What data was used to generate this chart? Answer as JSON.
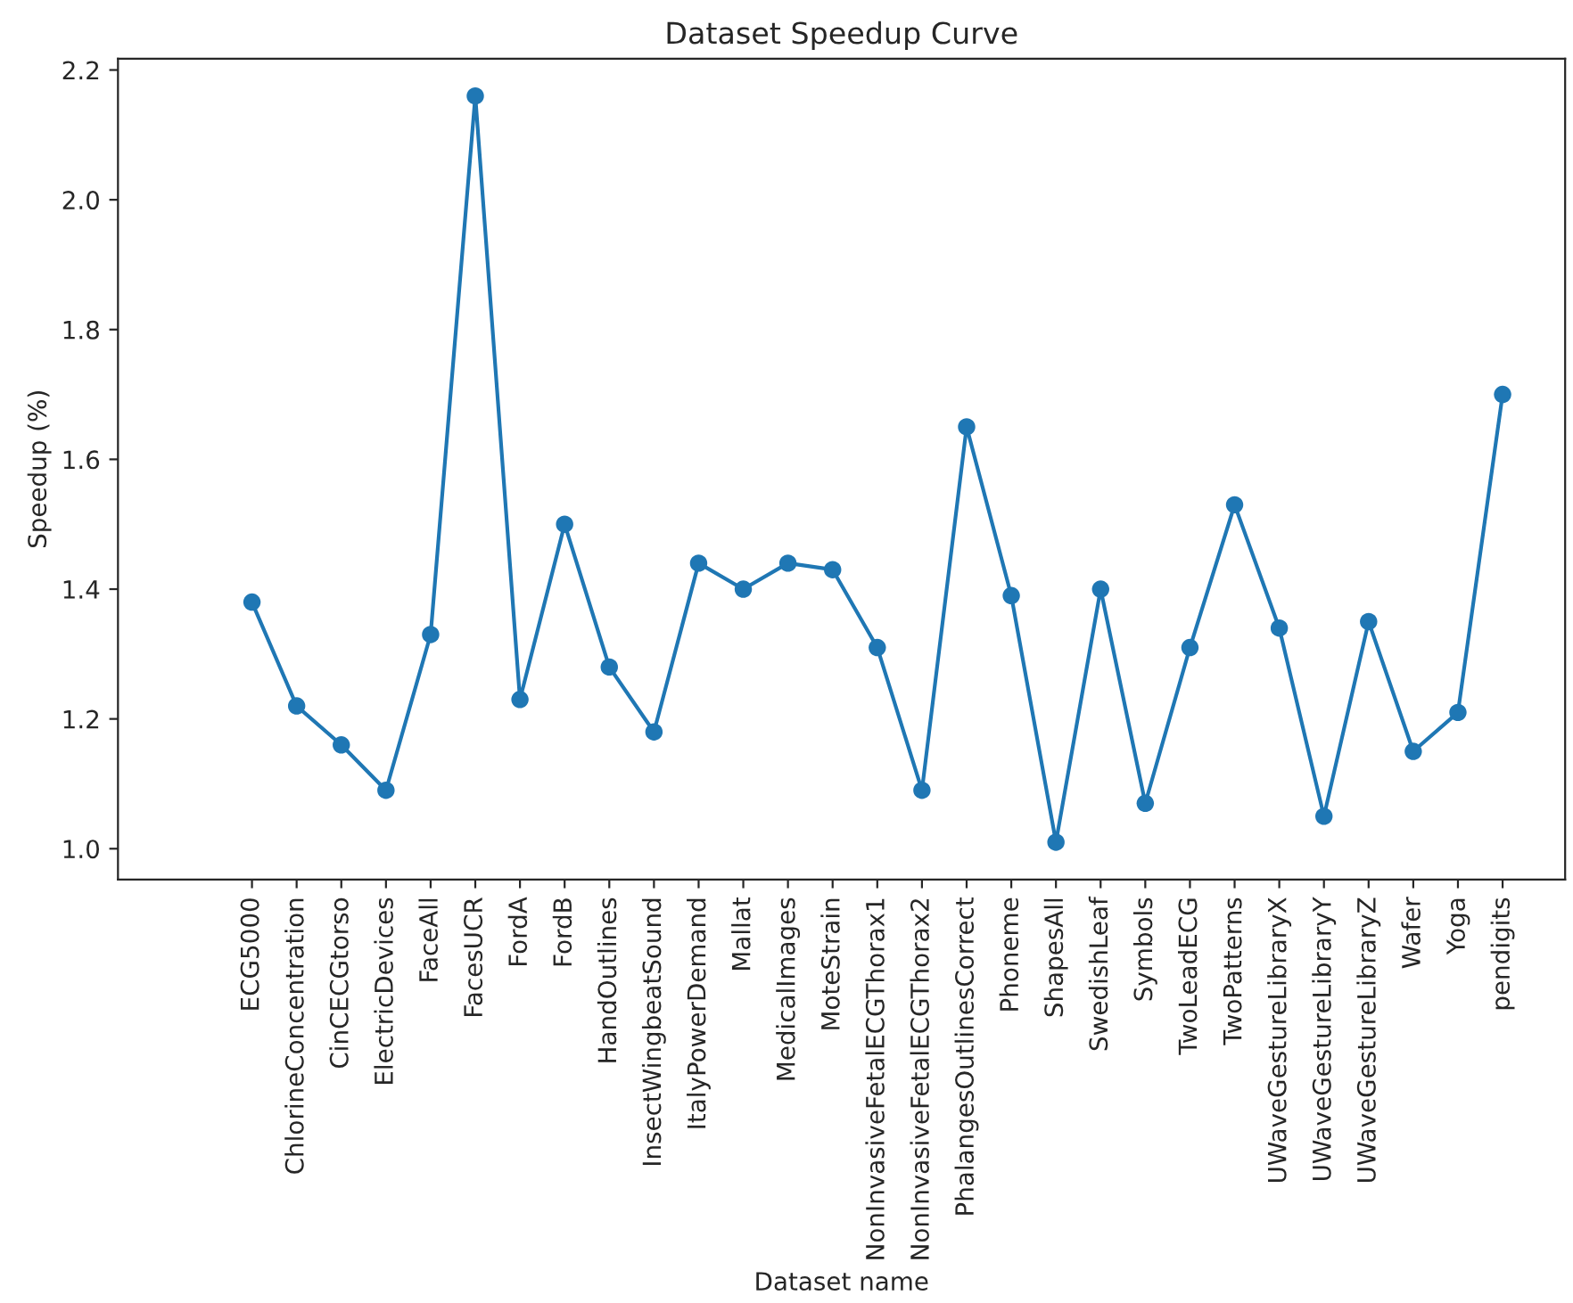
{
  "chart_data": {
    "type": "line",
    "title": "Dataset Speedup Curve",
    "xlabel": "Dataset name",
    "ylabel": "Speedup (%)",
    "categories": [
      "ECG5000",
      "ChlorineConcentration",
      "CinCECGtorso",
      "ElectricDevices",
      "FaceAll",
      "FacesUCR",
      "FordA",
      "FordB",
      "HandOutlines",
      "InsectWingbeatSound",
      "ItalyPowerDemand",
      "Mallat",
      "MedicalImages",
      "MoteStrain",
      "NonInvasiveFetalECGThorax1",
      "NonInvasiveFetalECGThorax2",
      "PhalangesOutlinesCorrect",
      "Phoneme",
      "ShapesAll",
      "SwedishLeaf",
      "Symbols",
      "TwoLeadECG",
      "TwoPatterns",
      "UWaveGestureLibraryX",
      "UWaveGestureLibraryY",
      "UWaveGestureLibraryZ",
      "Wafer",
      "Yoga",
      "pendigits"
    ],
    "series": [
      {
        "color": "#1f77b4",
        "values": [
          1.38,
          1.22,
          1.16,
          1.09,
          1.33,
          2.16,
          1.23,
          1.5,
          1.28,
          1.18,
          1.44,
          1.4,
          1.44,
          1.43,
          1.31,
          1.09,
          1.65,
          1.39,
          1.01,
          1.4,
          1.07,
          1.31,
          1.53,
          1.34,
          1.05,
          1.35,
          1.15,
          1.21,
          1.7
        ]
      }
    ],
    "ylim": [
      0.9525,
      2.2175
    ],
    "yticks": [
      {
        "value": 1.0,
        "label": "1.0"
      },
      {
        "value": 1.2,
        "label": "1.2"
      },
      {
        "value": 1.4,
        "label": "1.4"
      },
      {
        "value": 1.6,
        "label": "1.6"
      },
      {
        "value": 1.8,
        "label": "1.8"
      },
      {
        "value": 2.0,
        "label": "2.0"
      },
      {
        "value": 2.2,
        "label": "2.2"
      }
    ],
    "marker": "circle",
    "line_style": "solid",
    "grid": false,
    "legend": false
  }
}
